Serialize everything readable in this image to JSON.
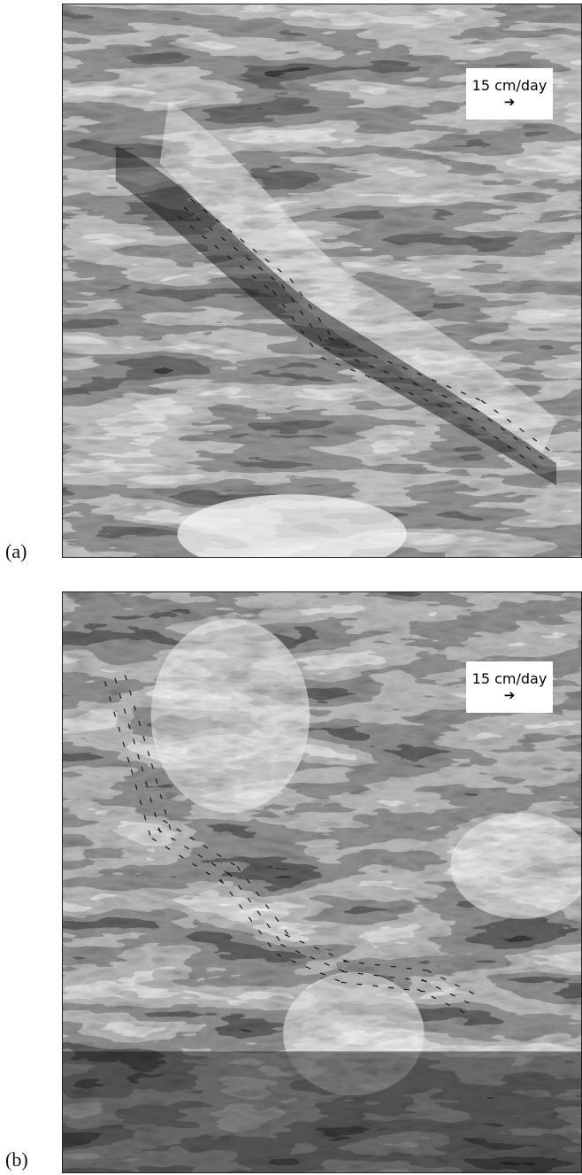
{
  "figure": {
    "panels": [
      {
        "label": "(a)",
        "scale_text": "15 cm/day",
        "scale_icon": "right-arrow-icon"
      },
      {
        "label": "(b)",
        "scale_text": "15 cm/day",
        "scale_icon": "right-arrow-icon"
      }
    ]
  },
  "colors": {
    "background": "#ffffff",
    "texture_light": "#f4f4f4",
    "texture_dark": "#0c0c0c",
    "vector_color": "#1a1a1a"
  }
}
